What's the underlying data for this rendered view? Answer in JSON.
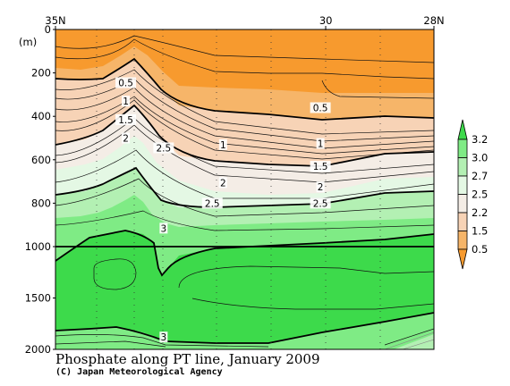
{
  "chart_data": {
    "type": "heatmap",
    "title": "Phosphate along PT line, January 2009",
    "credit": "(C) Japan Meteorological Agency",
    "y_unit_label": "(m)",
    "x_ticks": [
      "35N",
      "30",
      "28N"
    ],
    "y_ticks": [
      "0",
      "200",
      "400",
      "600",
      "800",
      "1000",
      "1500",
      "2000"
    ],
    "y_axis": {
      "upper_range": [
        0,
        1000
      ],
      "lower_range": [
        1000,
        2000
      ],
      "split_depth": 1000,
      "reversed": true
    },
    "colorbar": {
      "ticks": [
        "3.2",
        "3.0",
        "2.7",
        "2.5",
        "2.2",
        "1.5",
        "0.5"
      ],
      "levels": [
        0.5,
        1.5,
        2.2,
        2.5,
        2.7,
        3.0,
        3.2
      ],
      "colors": [
        "#f79a2e",
        "#f6b569",
        "#f7d3b6",
        "#f4ede6",
        "#e4f8e4",
        "#b3f0b3",
        "#7feb85",
        "#3dda4b"
      ]
    },
    "contour_labels": [
      {
        "text": "0.5",
        "lat": 33.7,
        "depth": 245
      },
      {
        "text": "1",
        "lat": 33.7,
        "depth": 330
      },
      {
        "text": "1.5",
        "lat": 33.7,
        "depth": 415
      },
      {
        "text": "2",
        "lat": 33.7,
        "depth": 500
      },
      {
        "text": "2.5",
        "lat": 33.0,
        "depth": 545
      },
      {
        "text": "1",
        "lat": 31.9,
        "depth": 530
      },
      {
        "text": "2",
        "lat": 31.9,
        "depth": 705
      },
      {
        "text": "2.5",
        "lat": 32.1,
        "depth": 800
      },
      {
        "text": "3",
        "lat": 33.0,
        "depth": 915
      },
      {
        "text": "0.5",
        "lat": 30.1,
        "depth": 360
      },
      {
        "text": "1",
        "lat": 30.1,
        "depth": 525
      },
      {
        "text": "1.5",
        "lat": 30.1,
        "depth": 630
      },
      {
        "text": "2",
        "lat": 30.1,
        "depth": 725
      },
      {
        "text": "2.5",
        "lat": 30.1,
        "depth": 800
      },
      {
        "text": "3",
        "lat": 33.0,
        "depth": 1880
      }
    ]
  }
}
